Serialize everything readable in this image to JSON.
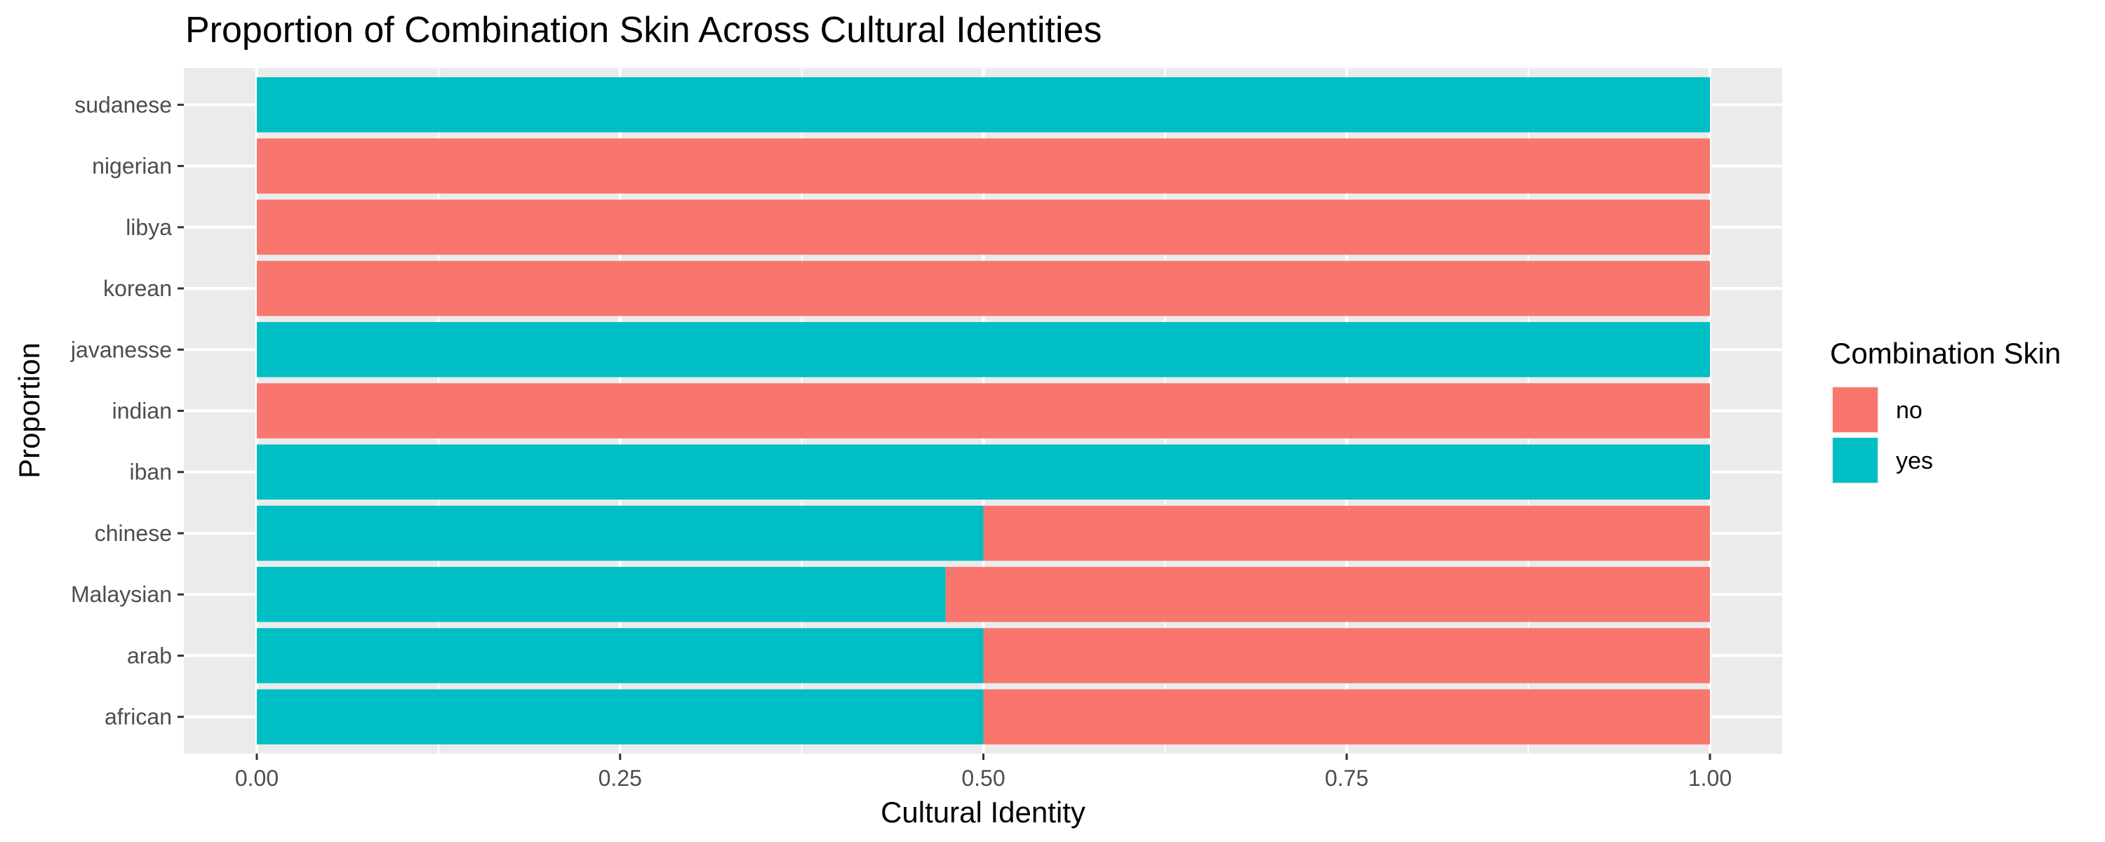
{
  "chart_data": {
    "type": "bar",
    "orientation": "horizontal",
    "stacked": "fill",
    "title": "Proportion of Combination Skin Across Cultural Identities",
    "xlabel": "Cultural Identity",
    "ylabel": "Proportion",
    "xlim": [
      0,
      1
    ],
    "xticks": [
      0,
      0.25,
      0.5,
      0.75,
      1.0
    ],
    "xtick_labels": [
      "0.00",
      "0.25",
      "0.50",
      "0.75",
      "1.00"
    ],
    "grid": true,
    "legend": {
      "title": "Combination Skin",
      "position": "right"
    },
    "categories": [
      "african",
      "arab",
      "Malaysian",
      "chinese",
      "iban",
      "indian",
      "javanesse",
      "korean",
      "libya",
      "nigerian",
      "sudanese"
    ],
    "series": [
      {
        "name": "yes",
        "color": "#00BFC4",
        "values": [
          0.5,
          0.5,
          0.474,
          0.5,
          1.0,
          0.0,
          1.0,
          0.0,
          0.0,
          0.0,
          1.0
        ]
      },
      {
        "name": "no",
        "color": "#F8766D",
        "values": [
          0.5,
          0.5,
          0.526,
          0.5,
          0.0,
          1.0,
          0.0,
          1.0,
          1.0,
          1.0,
          0.0
        ]
      }
    ]
  }
}
